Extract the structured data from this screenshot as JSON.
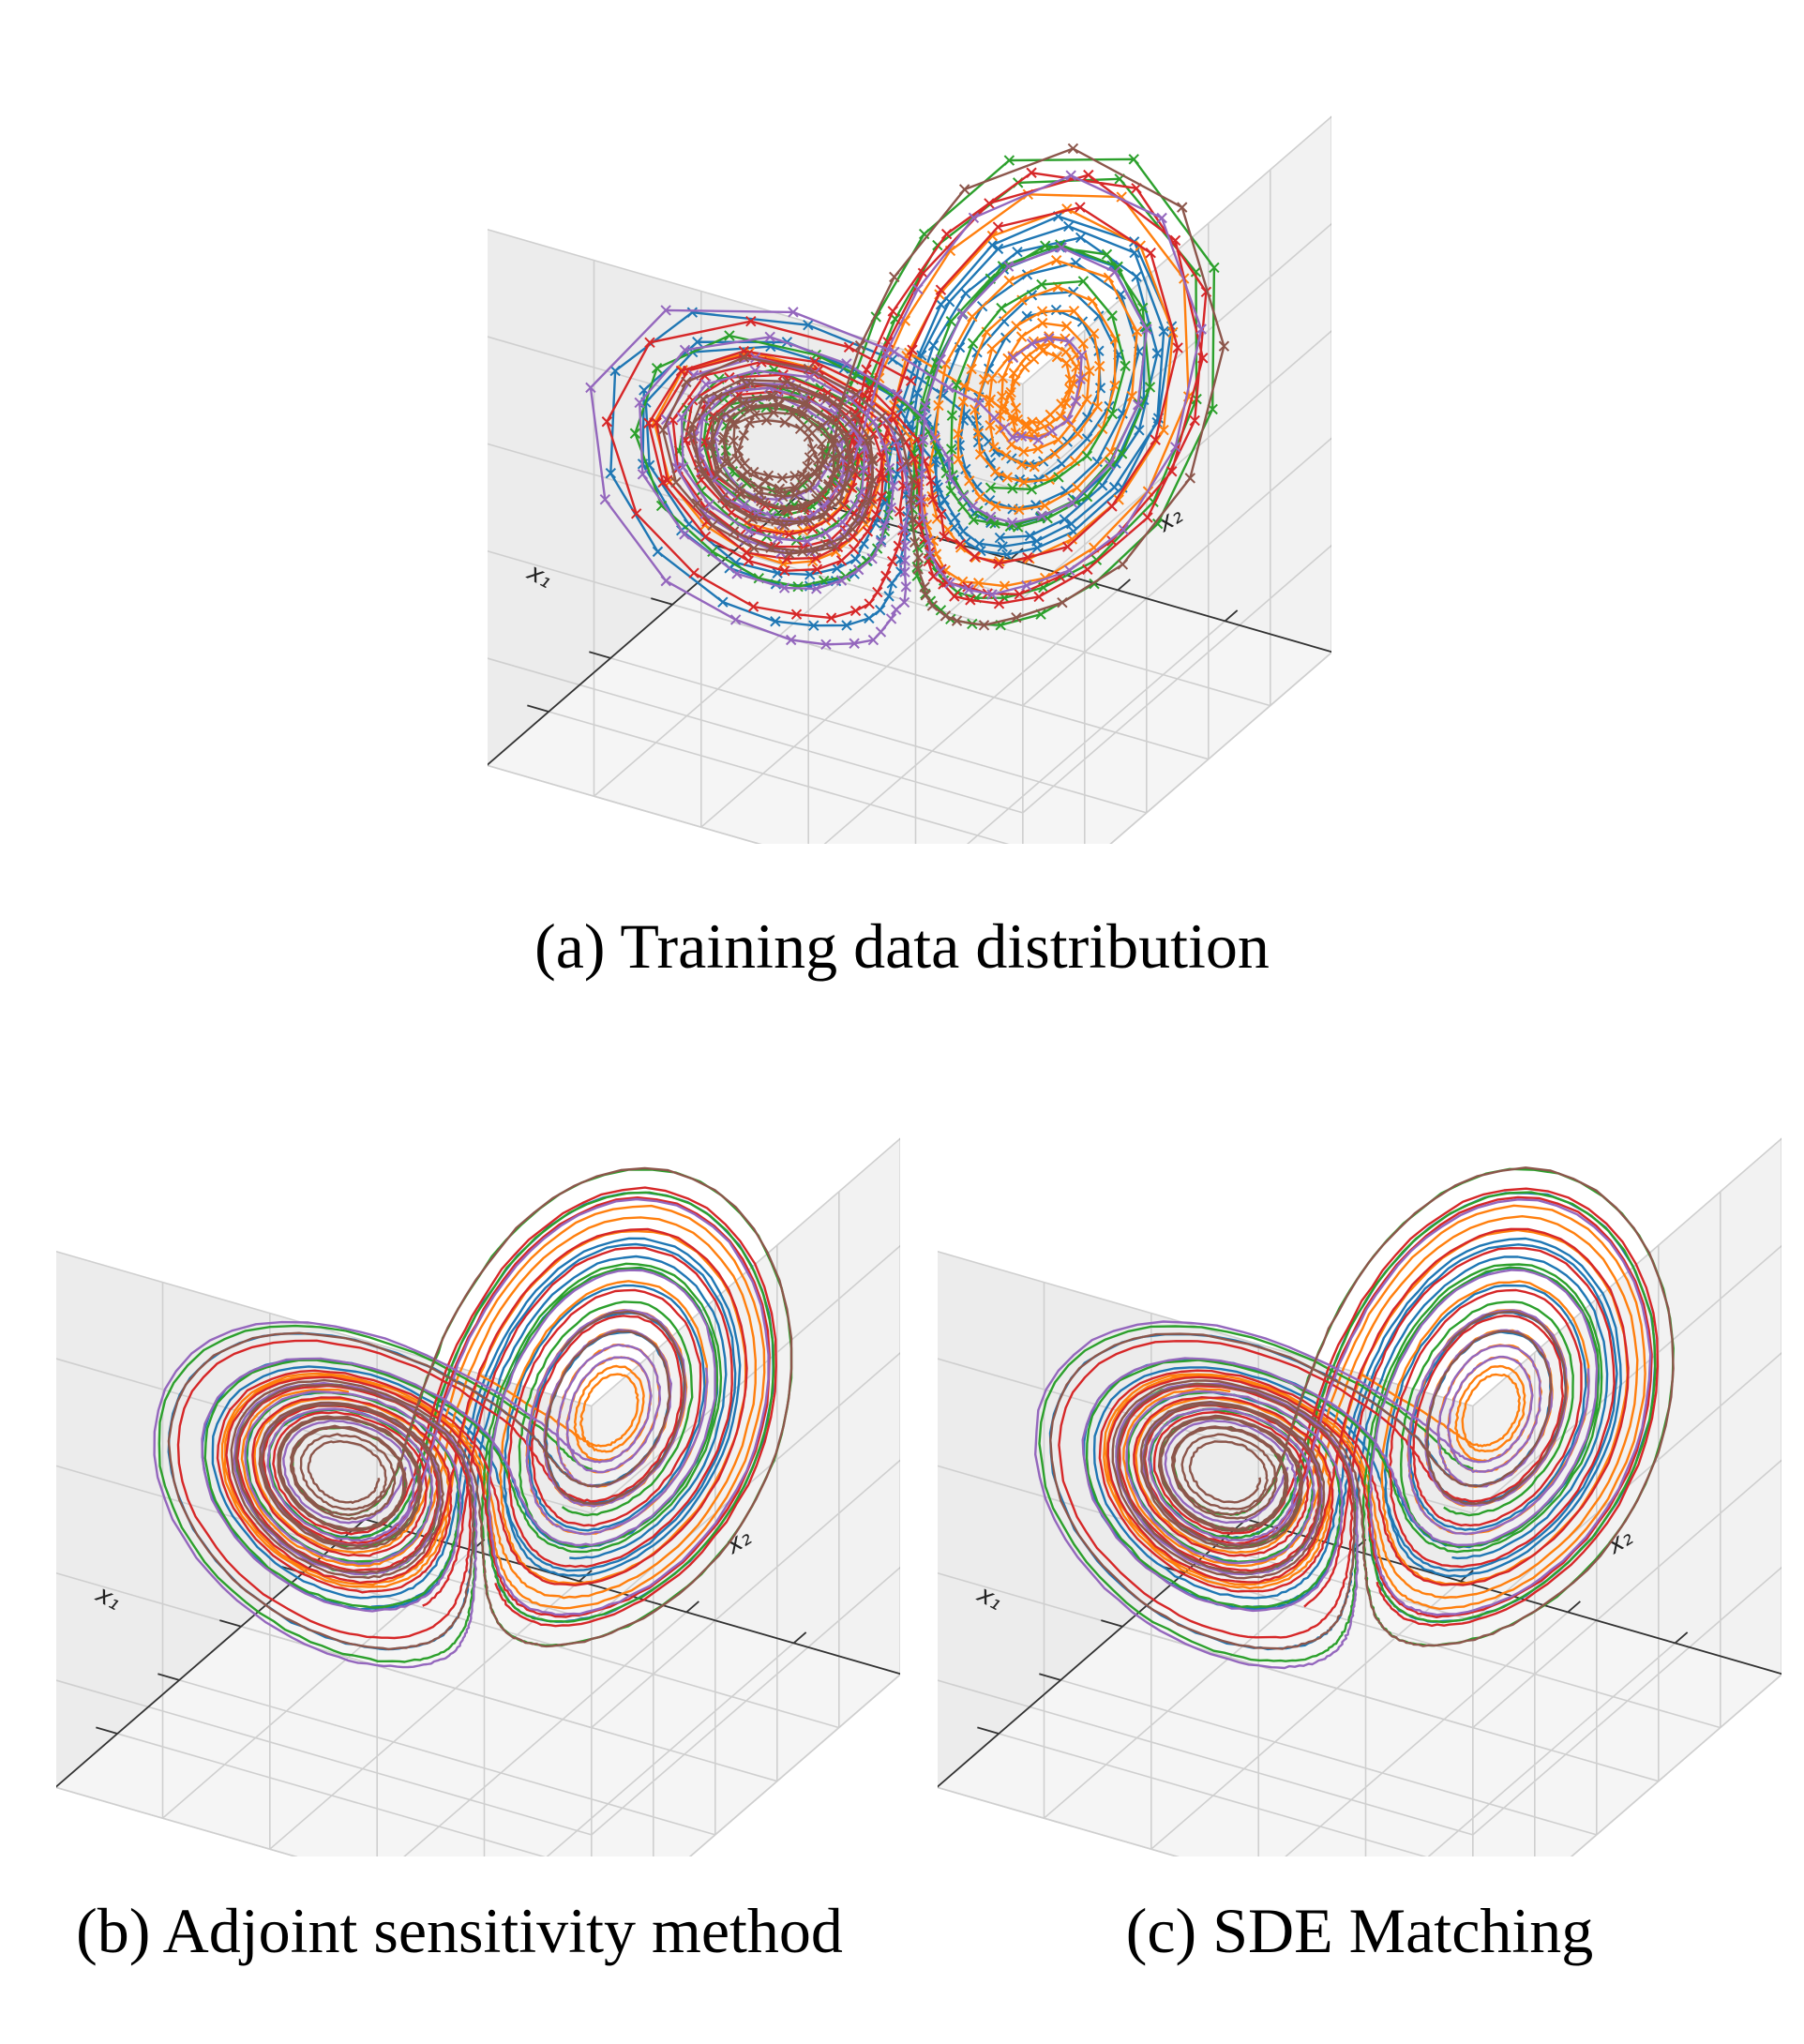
{
  "chart_data": [
    {
      "type": "line",
      "panel": "a",
      "caption": "(a) Training data distribution",
      "xlabel": "x₁",
      "ylabel": "x₂",
      "grid": true,
      "markers": true,
      "series_colors": [
        "#1f77b4",
        "#ff7f0e",
        "#2ca02c",
        "#d62728",
        "#9467bd",
        "#8c564b"
      ]
    },
    {
      "type": "line",
      "panel": "b",
      "caption": "(b) Adjoint sensitivity method",
      "xlabel": "x₁",
      "ylabel": "x₂",
      "grid": true,
      "markers": false,
      "series_colors": [
        "#1f77b4",
        "#ff7f0e",
        "#2ca02c",
        "#d62728",
        "#9467bd",
        "#8c564b"
      ]
    },
    {
      "type": "line",
      "panel": "c",
      "caption": "(c) SDE Matching",
      "xlabel": "x₁",
      "ylabel": "x₂",
      "grid": true,
      "markers": false,
      "series_colors": [
        "#1f77b4",
        "#ff7f0e",
        "#2ca02c",
        "#d62728",
        "#9467bd",
        "#8c564b"
      ]
    }
  ]
}
